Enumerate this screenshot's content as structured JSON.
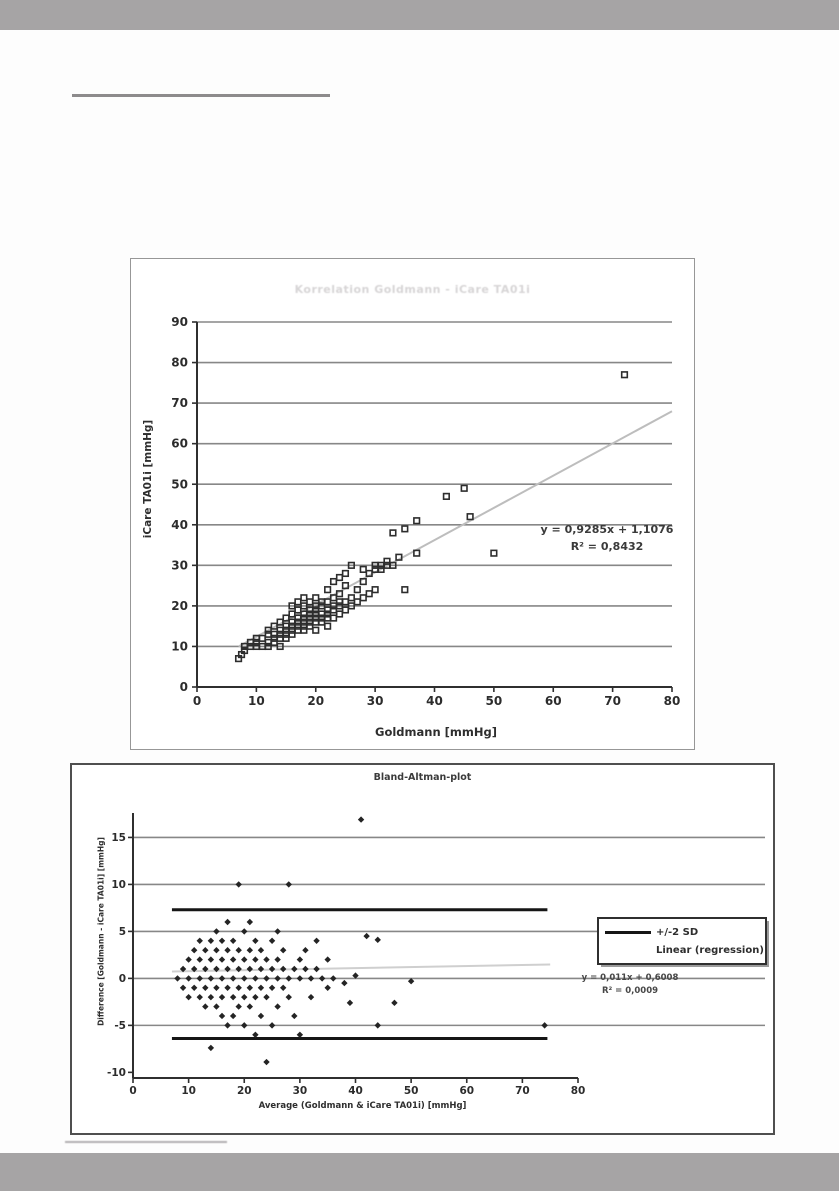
{
  "page": {
    "kind": "scanned thesis page with two statistical plots",
    "colors": {
      "scan_bar": "#a6a4a5",
      "paper": "#ffffff",
      "grid": "#878787",
      "ink": "#2c2c2c"
    }
  },
  "chart_data": [
    {
      "type": "scatter",
      "title": "Korrelation Goldmann - iCare TA01i",
      "xlabel": "Goldmann [mmHg]",
      "ylabel": "iCare TA01i [mmHg]",
      "xlim": [
        0,
        80
      ],
      "ylim": [
        0,
        90
      ],
      "xticks": [
        0,
        10,
        20,
        30,
        40,
        50,
        60,
        70,
        80
      ],
      "yticks": [
        0,
        10,
        20,
        30,
        40,
        50,
        60,
        70,
        80,
        90
      ],
      "grid_values": [
        10,
        20,
        30,
        40,
        50,
        60,
        70,
        80,
        90
      ],
      "grid": "horizontal",
      "legend_position": "none",
      "equation": "y = 0,9285x + 1,1076",
      "r_squared": "R² = 0,8432",
      "marker": "open-square",
      "lines": [
        {
          "x1": 7,
          "y1": 10,
          "x2": 80,
          "y2": 68,
          "style": "trend"
        }
      ],
      "points": [
        [
          7,
          7
        ],
        [
          7.5,
          8
        ],
        [
          8,
          9
        ],
        [
          8,
          10
        ],
        [
          9,
          10
        ],
        [
          9,
          11
        ],
        [
          10,
          10
        ],
        [
          10,
          11
        ],
        [
          10,
          12
        ],
        [
          11,
          10
        ],
        [
          11,
          12
        ],
        [
          12,
          10
        ],
        [
          12,
          11
        ],
        [
          12,
          13
        ],
        [
          12,
          14
        ],
        [
          13,
          11
        ],
        [
          13,
          12
        ],
        [
          13,
          13
        ],
        [
          13,
          15
        ],
        [
          14,
          10
        ],
        [
          14,
          12
        ],
        [
          14,
          13
        ],
        [
          14,
          14
        ],
        [
          14,
          16
        ],
        [
          15,
          12
        ],
        [
          15,
          13
        ],
        [
          15,
          14
        ],
        [
          15,
          15
        ],
        [
          15,
          17
        ],
        [
          16,
          13
        ],
        [
          16,
          14
        ],
        [
          16,
          15
        ],
        [
          16,
          16
        ],
        [
          16,
          18
        ],
        [
          16,
          20
        ],
        [
          17,
          14
        ],
        [
          17,
          15
        ],
        [
          17,
          16
        ],
        [
          17,
          17
        ],
        [
          17,
          19
        ],
        [
          17,
          21
        ],
        [
          18,
          14
        ],
        [
          18,
          15
        ],
        [
          18,
          16
        ],
        [
          18,
          17
        ],
        [
          18,
          18
        ],
        [
          18,
          20
        ],
        [
          18,
          22
        ],
        [
          19,
          15
        ],
        [
          19,
          16
        ],
        [
          19,
          17
        ],
        [
          19,
          18
        ],
        [
          19,
          19
        ],
        [
          19,
          21
        ],
        [
          20,
          14
        ],
        [
          20,
          16
        ],
        [
          20,
          17
        ],
        [
          20,
          18
        ],
        [
          20,
          19
        ],
        [
          20,
          20
        ],
        [
          20,
          22
        ],
        [
          21,
          16
        ],
        [
          21,
          17
        ],
        [
          21,
          18
        ],
        [
          21,
          20
        ],
        [
          21,
          21
        ],
        [
          22,
          15
        ],
        [
          22,
          17
        ],
        [
          22,
          18
        ],
        [
          22,
          19
        ],
        [
          22,
          21
        ],
        [
          22,
          24
        ],
        [
          23,
          17
        ],
        [
          23,
          19
        ],
        [
          23,
          20
        ],
        [
          23,
          22
        ],
        [
          23,
          26
        ],
        [
          24,
          18
        ],
        [
          24,
          20
        ],
        [
          24,
          21
        ],
        [
          24,
          23
        ],
        [
          24,
          27
        ],
        [
          25,
          19
        ],
        [
          25,
          21
        ],
        [
          25,
          25
        ],
        [
          25,
          28
        ],
        [
          26,
          20
        ],
        [
          26,
          22
        ],
        [
          26,
          30
        ],
        [
          27,
          21
        ],
        [
          27,
          24
        ],
        [
          28,
          22
        ],
        [
          28,
          26
        ],
        [
          28,
          29
        ],
        [
          29,
          23
        ],
        [
          29,
          28
        ],
        [
          30,
          24
        ],
        [
          30,
          29
        ],
        [
          30,
          30
        ],
        [
          31,
          29
        ],
        [
          31,
          30
        ],
        [
          32,
          30
        ],
        [
          32,
          31
        ],
        [
          33,
          30
        ],
        [
          33,
          38
        ],
        [
          34,
          32
        ],
        [
          35,
          24
        ],
        [
          35,
          39
        ],
        [
          37,
          33
        ],
        [
          37,
          41
        ],
        [
          42,
          47
        ],
        [
          45,
          49
        ],
        [
          46,
          42
        ],
        [
          50,
          33
        ],
        [
          72,
          77
        ]
      ]
    },
    {
      "type": "scatter",
      "title": "Bland-Altman-plot",
      "xlabel": "Average (Goldmann & iCare TA01i) [mmHg]",
      "ylabel": "Difference [Goldmann - iCare TA01i] [mmHg]",
      "xlim": [
        0,
        80
      ],
      "ylim": [
        -10.6,
        17.6
      ],
      "xticks": [
        0,
        10,
        20,
        30,
        40,
        50,
        60,
        70,
        80
      ],
      "yticks": [
        15,
        10,
        5,
        0,
        -5,
        -10
      ],
      "grid_values": [
        15,
        10,
        5,
        0,
        -5
      ],
      "grid": "horizontal",
      "legend_position": "right-inside",
      "legend": [
        {
          "marker": "line",
          "label": "+/-2 SD"
        },
        {
          "marker": "none",
          "label": "Linear (regression)"
        }
      ],
      "equation": "y = 0,011x + 0,6008",
      "r_squared": "R² = 0,0009",
      "marker": "filled-diamond",
      "sd_upper": 7.3,
      "sd_lower": -6.4,
      "lines": [
        {
          "x1": 7,
          "y1": 7.3,
          "x2": 74.5,
          "y2": 7.3,
          "style": "sd"
        },
        {
          "x1": 7,
          "y1": -6.4,
          "x2": 74.5,
          "y2": -6.4,
          "style": "sd"
        },
        {
          "x1": 7,
          "y1": 0.73,
          "x2": 75,
          "y2": 1.48,
          "style": "reg"
        }
      ],
      "points": [
        [
          8,
          0
        ],
        [
          9,
          -1
        ],
        [
          9,
          1
        ],
        [
          10,
          0
        ],
        [
          10,
          -2
        ],
        [
          10,
          2
        ],
        [
          11,
          -1
        ],
        [
          11,
          1
        ],
        [
          11,
          3
        ],
        [
          12,
          0
        ],
        [
          12,
          -2
        ],
        [
          12,
          2
        ],
        [
          12,
          4
        ],
        [
          13,
          -1
        ],
        [
          13,
          1
        ],
        [
          13,
          3
        ],
        [
          13,
          -3
        ],
        [
          14,
          0
        ],
        [
          14,
          2
        ],
        [
          14,
          -2
        ],
        [
          14,
          4
        ],
        [
          14,
          -7.4
        ],
        [
          15,
          1
        ],
        [
          15,
          -1
        ],
        [
          15,
          3
        ],
        [
          15,
          -3
        ],
        [
          15,
          5
        ],
        [
          16,
          0
        ],
        [
          16,
          2
        ],
        [
          16,
          -2
        ],
        [
          16,
          4
        ],
        [
          16,
          -4
        ],
        [
          17,
          1
        ],
        [
          17,
          -1
        ],
        [
          17,
          3
        ],
        [
          17,
          -5
        ],
        [
          17,
          6
        ],
        [
          18,
          0
        ],
        [
          18,
          2
        ],
        [
          18,
          -2
        ],
        [
          18,
          4
        ],
        [
          18,
          -4
        ],
        [
          19,
          1
        ],
        [
          19,
          -1
        ],
        [
          19,
          3
        ],
        [
          19,
          -3
        ],
        [
          19,
          10
        ],
        [
          20,
          0
        ],
        [
          20,
          2
        ],
        [
          20,
          -2
        ],
        [
          20,
          5
        ],
        [
          20,
          -5
        ],
        [
          21,
          1
        ],
        [
          21,
          -1
        ],
        [
          21,
          3
        ],
        [
          21,
          -3
        ],
        [
          21,
          6
        ],
        [
          22,
          0
        ],
        [
          22,
          2
        ],
        [
          22,
          -2
        ],
        [
          22,
          4
        ],
        [
          22,
          -6
        ],
        [
          23,
          1
        ],
        [
          23,
          -1
        ],
        [
          23,
          3
        ],
        [
          23,
          -4
        ],
        [
          24,
          0
        ],
        [
          24,
          2
        ],
        [
          24,
          -2
        ],
        [
          24,
          -8.9
        ],
        [
          25,
          1
        ],
        [
          25,
          -1
        ],
        [
          25,
          4
        ],
        [
          25,
          -5
        ],
        [
          26,
          0
        ],
        [
          26,
          2
        ],
        [
          26,
          -3
        ],
        [
          26,
          5
        ],
        [
          27,
          1
        ],
        [
          27,
          -1
        ],
        [
          27,
          3
        ],
        [
          28,
          0
        ],
        [
          28,
          -2
        ],
        [
          28,
          10
        ],
        [
          29,
          1
        ],
        [
          29,
          -4
        ],
        [
          30,
          0
        ],
        [
          30,
          2
        ],
        [
          30,
          -6
        ],
        [
          31,
          1
        ],
        [
          31,
          3
        ],
        [
          32,
          0
        ],
        [
          32,
          -2
        ],
        [
          33,
          1
        ],
        [
          33,
          4
        ],
        [
          34,
          0
        ],
        [
          35,
          -1
        ],
        [
          35,
          2
        ],
        [
          36,
          0
        ],
        [
          38,
          -0.5
        ],
        [
          39,
          -2.6
        ],
        [
          40,
          0.3
        ],
        [
          41,
          16.9
        ],
        [
          42,
          4.5
        ],
        [
          44,
          4.1
        ],
        [
          44,
          -5
        ],
        [
          47,
          -2.6
        ],
        [
          50,
          -0.3
        ],
        [
          74,
          -5
        ]
      ]
    }
  ]
}
